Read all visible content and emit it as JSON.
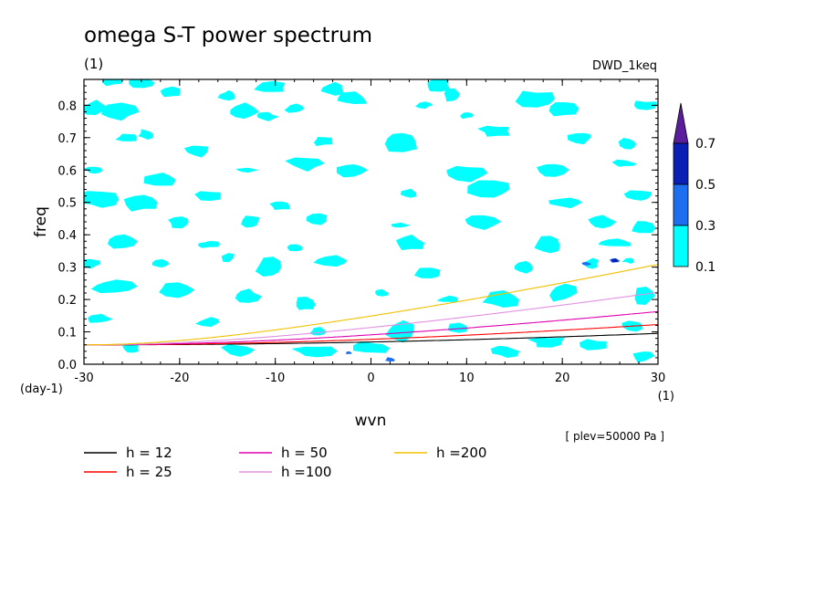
{
  "chart_data": {
    "type": "contour",
    "title": "omega S-T power spectrum",
    "subtitle": "(1)",
    "run_label": "DWD_1keq",
    "xlabel": "wvn",
    "x_unit": "(1)",
    "ylabel": "freq",
    "y_unit": "(day-1)",
    "xlim": [
      -30,
      30
    ],
    "ylim": [
      0,
      0.88
    ],
    "x_ticks": [
      "-30",
      "-20",
      "-10",
      "0",
      "10",
      "20",
      "30"
    ],
    "y_ticks": [
      "0.0",
      "0.1",
      "0.2",
      "0.3",
      "0.4",
      "0.5",
      "0.6",
      "0.7",
      "0.8"
    ],
    "level_note": "[ plev=50000 Pa ]",
    "colorbar": {
      "levels": [
        "0.1",
        "0.3",
        "0.5",
        "0.7"
      ],
      "colors": [
        "#00ffff",
        "#1e6ff0",
        "#0a20b4",
        "#5a1e9c"
      ]
    },
    "dispersion_curves": [
      {
        "name": "h = 12",
        "h": 12,
        "color": "#000000"
      },
      {
        "name": "h = 25",
        "h": 25,
        "color": "#ff0000"
      },
      {
        "name": "h = 50",
        "h": 50,
        "color": "#e000b0"
      },
      {
        "name": "h =100",
        "h": 100,
        "color": "#e090e0"
      },
      {
        "name": "h =200",
        "h": 200,
        "color": "#f0c000"
      }
    ],
    "contour_patches": [
      {
        "x": -27,
        "y": 0.876,
        "level": 0.1
      },
      {
        "x": -24,
        "y": 0.87,
        "level": 0.1
      },
      {
        "x": -21,
        "y": 0.84,
        "level": 0.1
      },
      {
        "x": -15,
        "y": 0.83,
        "level": 0.1
      },
      {
        "x": -10.5,
        "y": 0.855,
        "level": 0.1
      },
      {
        "x": -4,
        "y": 0.85,
        "level": 0.1
      },
      {
        "x": -2,
        "y": 0.82,
        "level": 0.1
      },
      {
        "x": 7,
        "y": 0.864,
        "level": 0.1
      },
      {
        "x": 8.5,
        "y": 0.83,
        "level": 0.1
      },
      {
        "x": 5.5,
        "y": 0.8,
        "level": 0.1
      },
      {
        "x": -29,
        "y": 0.79,
        "level": 0.1
      },
      {
        "x": -26.5,
        "y": 0.78,
        "level": 0.1
      },
      {
        "x": -13.5,
        "y": 0.78,
        "level": 0.1
      },
      {
        "x": -11,
        "y": 0.765,
        "level": 0.1
      },
      {
        "x": -8,
        "y": 0.79,
        "level": 0.1
      },
      {
        "x": 10,
        "y": 0.77,
        "level": 0.1
      },
      {
        "x": 17,
        "y": 0.82,
        "level": 0.1
      },
      {
        "x": 20,
        "y": 0.79,
        "level": 0.1
      },
      {
        "x": 28.5,
        "y": 0.8,
        "level": 0.1
      },
      {
        "x": -25.5,
        "y": 0.7,
        "level": 0.1
      },
      {
        "x": -23.5,
        "y": 0.71,
        "level": 0.1
      },
      {
        "x": -5,
        "y": 0.69,
        "level": 0.1
      },
      {
        "x": 3,
        "y": 0.69,
        "level": 0.1
      },
      {
        "x": 13,
        "y": 0.72,
        "level": 0.1
      },
      {
        "x": 22,
        "y": 0.7,
        "level": 0.1
      },
      {
        "x": 27,
        "y": 0.68,
        "level": 0.1
      },
      {
        "x": -18,
        "y": 0.66,
        "level": 0.1
      },
      {
        "x": -13,
        "y": 0.6,
        "level": 0.1
      },
      {
        "x": -7,
        "y": 0.62,
        "level": 0.1
      },
      {
        "x": -2,
        "y": 0.6,
        "level": 0.1
      },
      {
        "x": 10,
        "y": 0.59,
        "level": 0.1
      },
      {
        "x": 19,
        "y": 0.6,
        "level": 0.1
      },
      {
        "x": 26.5,
        "y": 0.62,
        "level": 0.1
      },
      {
        "x": -29,
        "y": 0.6,
        "level": 0.1
      },
      {
        "x": -22,
        "y": 0.57,
        "level": 0.1
      },
      {
        "x": -28.5,
        "y": 0.51,
        "level": 0.1
      },
      {
        "x": -24,
        "y": 0.5,
        "level": 0.1
      },
      {
        "x": -17,
        "y": 0.52,
        "level": 0.1
      },
      {
        "x": -9.5,
        "y": 0.49,
        "level": 0.1
      },
      {
        "x": 4,
        "y": 0.53,
        "level": 0.1
      },
      {
        "x": 12.5,
        "y": 0.54,
        "level": 0.1
      },
      {
        "x": 20.5,
        "y": 0.5,
        "level": 0.1
      },
      {
        "x": 28,
        "y": 0.52,
        "level": 0.1
      },
      {
        "x": -20,
        "y": 0.44,
        "level": 0.1
      },
      {
        "x": -12.5,
        "y": 0.44,
        "level": 0.1
      },
      {
        "x": -5.5,
        "y": 0.45,
        "level": 0.1
      },
      {
        "x": 3,
        "y": 0.43,
        "level": 0.1
      },
      {
        "x": 11.5,
        "y": 0.44,
        "level": 0.1
      },
      {
        "x": 24,
        "y": 0.44,
        "level": 0.1
      },
      {
        "x": 28.5,
        "y": 0.42,
        "level": 0.1
      },
      {
        "x": -26,
        "y": 0.38,
        "level": 0.1
      },
      {
        "x": -17,
        "y": 0.37,
        "level": 0.1
      },
      {
        "x": -8,
        "y": 0.36,
        "level": 0.1
      },
      {
        "x": 4,
        "y": 0.375,
        "level": 0.1
      },
      {
        "x": 18.5,
        "y": 0.37,
        "level": 0.1
      },
      {
        "x": 25.5,
        "y": 0.375,
        "level": 0.1
      },
      {
        "x": -29.5,
        "y": 0.31,
        "level": 0.1
      },
      {
        "x": -22,
        "y": 0.31,
        "level": 0.1
      },
      {
        "x": -15,
        "y": 0.33,
        "level": 0.1
      },
      {
        "x": -10.5,
        "y": 0.3,
        "level": 0.1
      },
      {
        "x": -4,
        "y": 0.32,
        "level": 0.1
      },
      {
        "x": 6,
        "y": 0.28,
        "level": 0.1
      },
      {
        "x": 16,
        "y": 0.3,
        "level": 0.1
      },
      {
        "x": 23,
        "y": 0.31,
        "level": 0.1
      },
      {
        "x": 27,
        "y": 0.32,
        "level": 0.1
      },
      {
        "x": -27,
        "y": 0.24,
        "level": 0.1
      },
      {
        "x": -20.5,
        "y": 0.23,
        "level": 0.1
      },
      {
        "x": -13,
        "y": 0.21,
        "level": 0.1
      },
      {
        "x": -7,
        "y": 0.185,
        "level": 0.1
      },
      {
        "x": 1,
        "y": 0.22,
        "level": 0.1
      },
      {
        "x": 8,
        "y": 0.2,
        "level": 0.1
      },
      {
        "x": 13.5,
        "y": 0.2,
        "level": 0.1
      },
      {
        "x": 20,
        "y": 0.22,
        "level": 0.1
      },
      {
        "x": 28.5,
        "y": 0.21,
        "level": 0.1
      },
      {
        "x": -28.5,
        "y": 0.14,
        "level": 0.1
      },
      {
        "x": -17,
        "y": 0.13,
        "level": 0.1
      },
      {
        "x": -5.5,
        "y": 0.1,
        "level": 0.1
      },
      {
        "x": 3,
        "y": 0.1,
        "level": 0.1
      },
      {
        "x": 9,
        "y": 0.11,
        "level": 0.1
      },
      {
        "x": 18.5,
        "y": 0.07,
        "level": 0.1
      },
      {
        "x": 23.5,
        "y": 0.06,
        "level": 0.1
      },
      {
        "x": 27.5,
        "y": 0.12,
        "level": 0.1
      },
      {
        "x": -25,
        "y": 0.05,
        "level": 0.1
      },
      {
        "x": -14,
        "y": 0.045,
        "level": 0.1
      },
      {
        "x": -6,
        "y": 0.04,
        "level": 0.1
      },
      {
        "x": 0,
        "y": 0.05,
        "level": 0.1
      },
      {
        "x": 14,
        "y": 0.04,
        "level": 0.1
      },
      {
        "x": 28.5,
        "y": 0.025,
        "level": 0.1
      },
      {
        "x": -2.3,
        "y": 0.035,
        "level": 0.3
      },
      {
        "x": 2,
        "y": 0.014,
        "level": 0.3
      },
      {
        "x": 25.5,
        "y": 0.32,
        "level": 0.3
      },
      {
        "x": 22.5,
        "y": 0.31,
        "level": 0.3
      },
      {
        "x": 25.5,
        "y": 0.32,
        "level": 0.5
      }
    ]
  }
}
